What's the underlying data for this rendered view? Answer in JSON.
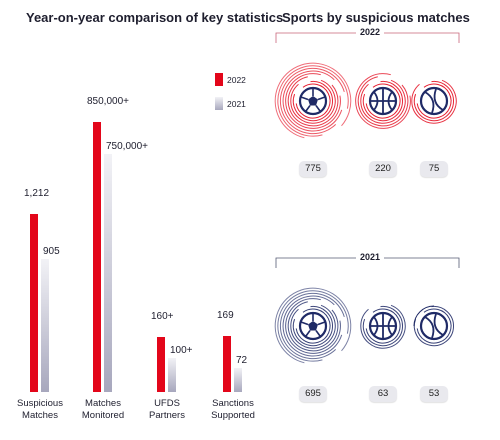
{
  "chart_data": [
    {
      "type": "bar",
      "title": "Year-on-year comparison of key statistics",
      "categories": [
        "Suspicious\nMatches",
        "Matches\nMonitored",
        "UFDS\nPartners",
        "Sanctions\nSupported"
      ],
      "series": [
        {
          "name": "2022",
          "values": [
            1212,
            850000,
            160,
            169
          ],
          "labels": [
            "1,212",
            "850,000+",
            "160+",
            "169"
          ]
        },
        {
          "name": "2021",
          "values": [
            905,
            750000,
            100,
            72
          ],
          "labels": [
            "905",
            "750,000+",
            "100+",
            "72"
          ]
        }
      ],
      "colors": {
        "2022": "#e3061a",
        "2021": "#b8b8c8"
      },
      "legend": "top-right"
    },
    {
      "type": "table",
      "title": "Sports by suspicious matches",
      "groups": [
        {
          "year": "2022",
          "color": "#e3061a",
          "items": [
            {
              "sport": "football",
              "icon": "football-icon",
              "value": 775
            },
            {
              "sport": "basketball",
              "icon": "basketball-icon",
              "value": 220
            },
            {
              "sport": "tennis",
              "icon": "tennis-icon",
              "value": 75
            }
          ]
        },
        {
          "year": "2021",
          "color": "#1f2a66",
          "items": [
            {
              "sport": "football",
              "icon": "football-icon",
              "value": 695
            },
            {
              "sport": "basketball",
              "icon": "basketball-icon",
              "value": 63
            },
            {
              "sport": "tennis",
              "icon": "tennis-icon",
              "value": 53
            }
          ]
        }
      ]
    }
  ]
}
